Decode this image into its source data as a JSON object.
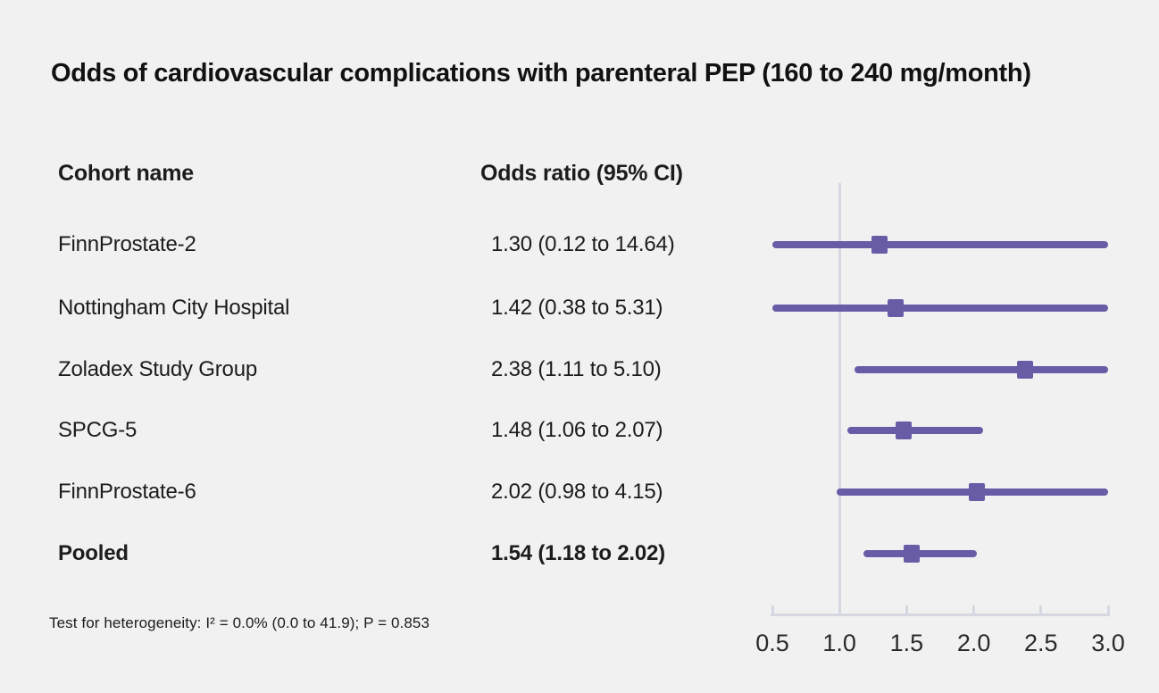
{
  "title": "Odds of cardiovascular complications with parenteral PEP (160 to 240 mg/month)",
  "table": {
    "cohort_header": "Cohort name",
    "or_header": "Odds ratio (95% CI)"
  },
  "footnote": "Test for heterogeneity: I² = 0.0% (0.0 to 41.9); P = 0.853",
  "chart_data": {
    "type": "scatter",
    "subtype": "forest-plot",
    "title": "Odds of cardiovascular complications with parenteral PEP (160 to 240 mg/month)",
    "xlabel": "Odds ratio",
    "ylabel": "Cohort name",
    "xlim": [
      0.5,
      3.0
    ],
    "grid": false,
    "rows": [
      {
        "label": "FinnProstate-2",
        "or_text": "1.30 (0.12 to 14.64)",
        "estimate": 1.3,
        "ci_low": 0.12,
        "ci_high": 14.64,
        "bold": false
      },
      {
        "label": "Nottingham City Hospital",
        "or_text": "1.42 (0.38 to 5.31)",
        "estimate": 1.42,
        "ci_low": 0.38,
        "ci_high": 5.31,
        "bold": false
      },
      {
        "label": "Zoladex Study Group",
        "or_text": "2.38 (1.11 to 5.10)",
        "estimate": 2.38,
        "ci_low": 1.11,
        "ci_high": 5.1,
        "bold": false
      },
      {
        "label": "SPCG-5",
        "or_text": "1.48 (1.06 to 2.07)",
        "estimate": 1.48,
        "ci_low": 1.06,
        "ci_high": 2.07,
        "bold": false
      },
      {
        "label": "FinnProstate-6",
        "or_text": "2.02 (0.98 to 4.15)",
        "estimate": 2.02,
        "ci_low": 0.98,
        "ci_high": 4.15,
        "bold": false
      },
      {
        "label": "Pooled",
        "or_text": "1.54 (1.18 to 2.02)",
        "estimate": 1.54,
        "ci_low": 1.18,
        "ci_high": 2.02,
        "bold": true
      }
    ],
    "x_axis": {
      "min": 0.5,
      "max": 3.0,
      "ticks": [
        0.5,
        1.0,
        1.5,
        2.0,
        2.5,
        3.0
      ],
      "tick_labels": [
        "0.5",
        "1.0",
        "1.5",
        "2.0",
        "2.5",
        "3.0"
      ],
      "reference_line": 1.0
    },
    "colors": {
      "marker": "#695ca6",
      "ci_line": "#695ca6",
      "axis": "#d5d8e1",
      "background": "#f2f1f1",
      "text": "#1c1c1c"
    }
  }
}
